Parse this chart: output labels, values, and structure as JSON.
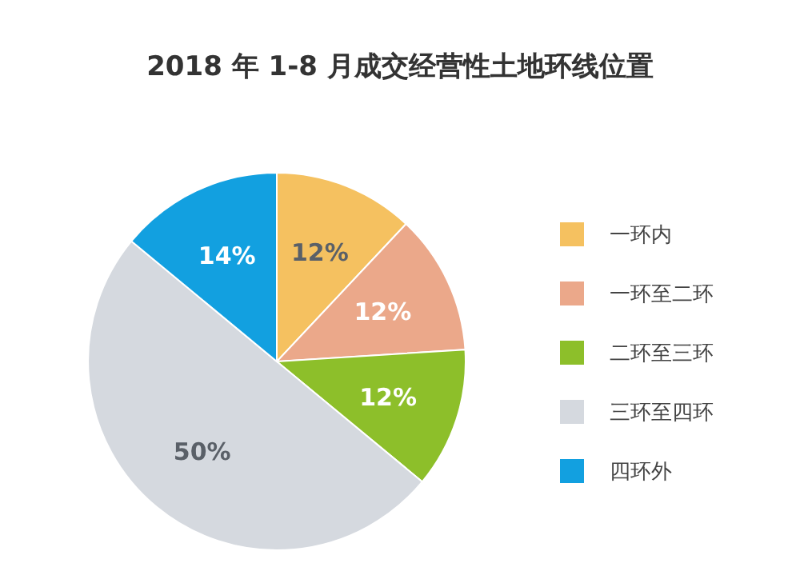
{
  "chart_data": {
    "type": "pie",
    "title": "2018 年 1-8 月成交经营性土地环线位置",
    "categories": [
      "一环内",
      "一环至二环",
      "二环至三环",
      "三环至四环",
      "四环外"
    ],
    "values": [
      12,
      12,
      12,
      50,
      14
    ],
    "colors": [
      "#f5c160",
      "#eba88a",
      "#8dbf2a",
      "#d5d9df",
      "#12a0e0"
    ],
    "value_labels": [
      "12%",
      "12%",
      "12%",
      "50%",
      "14%"
    ],
    "legend": "right"
  }
}
